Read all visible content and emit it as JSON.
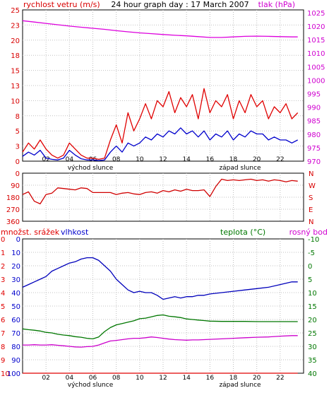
{
  "window": {
    "background": "#ffffff"
  },
  "chart_data": [
    {
      "type": "line",
      "title": "24 hour graph day : 17 March 2007",
      "left_axis_label": "rychlost vetru (m/s)",
      "right_axis_label": "tlak (hPa)",
      "left_ticks": [
        "0",
        "3",
        "5",
        "8",
        "10",
        "13",
        "15",
        "18",
        "20",
        "23",
        "25"
      ],
      "right_ticks": [
        "970",
        "975",
        "980",
        "985",
        "990",
        "995",
        "1000",
        "1005",
        "1010",
        "1015",
        "1020",
        "1025"
      ],
      "x_ticks": [
        "02",
        "04",
        "06",
        "08",
        "10",
        "12",
        "14",
        "16",
        "18",
        "20",
        "22"
      ],
      "x_notes": [
        "východ slunce",
        "západ slunce"
      ],
      "ylim_left": [
        0,
        25
      ],
      "ylim_right": [
        970,
        1026
      ],
      "xlim_hours": [
        0,
        24
      ],
      "grid": true,
      "colors": {
        "left_axis": "#d80000",
        "right_axis": "#d000d0"
      },
      "series": [
        {
          "name": "tlak (hPa)",
          "color": "#dd00dd",
          "axis": "right",
          "x": [
            0,
            1,
            2,
            3,
            4,
            5,
            6,
            7,
            8,
            9,
            10,
            11,
            12,
            13,
            14,
            15,
            16,
            17,
            18,
            19,
            20,
            21,
            22,
            23,
            23.5
          ],
          "y": [
            1022,
            1021.5,
            1021,
            1020.5,
            1020,
            1019.6,
            1019.2,
            1018.8,
            1018.3,
            1017.9,
            1017.5,
            1017.2,
            1016.9,
            1016.6,
            1016.4,
            1016.1,
            1015.8,
            1015.8,
            1016,
            1016.2,
            1016.3,
            1016.2,
            1016.1,
            1016,
            1016
          ]
        },
        {
          "name": "gust",
          "color": "#e00000",
          "axis": "left",
          "x": [
            0,
            0.5,
            1,
            1.5,
            2,
            2.5,
            3,
            3.5,
            4,
            4.5,
            5,
            5.5,
            6,
            6.5,
            7,
            7.5,
            8,
            8.5,
            9,
            9.5,
            10,
            10.5,
            11,
            11.5,
            12,
            12.5,
            13,
            13.5,
            14,
            14.5,
            15,
            15.5,
            16,
            16.5,
            17,
            17.5,
            18,
            18.5,
            19,
            19.5,
            20,
            20.5,
            21,
            21.5,
            22,
            22.5,
            23,
            23.5
          ],
          "y": [
            1.5,
            3,
            2,
            3.5,
            2,
            1,
            0.5,
            1,
            3,
            2,
            1,
            0.5,
            0.5,
            0.3,
            0.5,
            3.5,
            6,
            3,
            8,
            5,
            7,
            9.5,
            7,
            10,
            9,
            11.5,
            8,
            10.5,
            9,
            11,
            7,
            12,
            8,
            10,
            9,
            11,
            7,
            10,
            8,
            11,
            9,
            10,
            7,
            9,
            8,
            9.5,
            7,
            8
          ]
        },
        {
          "name": "rychlost vetru (m/s)",
          "color": "#0000cc",
          "axis": "left",
          "x": [
            0,
            0.5,
            1,
            1.5,
            2,
            2.5,
            3,
            3.5,
            4,
            4.5,
            5,
            5.5,
            6,
            6.5,
            7,
            7.5,
            8,
            8.5,
            9,
            9.5,
            10,
            10.5,
            11,
            11.5,
            12,
            12.5,
            13,
            13.5,
            14,
            14.5,
            15,
            15.5,
            16,
            16.5,
            17,
            17.5,
            18,
            18.5,
            19,
            19.5,
            20,
            20.5,
            21,
            21.5,
            22,
            22.5,
            23,
            23.5
          ],
          "y": [
            0.8,
            1.5,
            1,
            1.8,
            0.5,
            0.3,
            0.2,
            0.5,
            1.8,
            1,
            0.4,
            0.2,
            0.2,
            0.1,
            0.2,
            1.5,
            2.5,
            1.5,
            3,
            2.5,
            3,
            4,
            3.5,
            4.5,
            4,
            5,
            4.5,
            5.5,
            4.5,
            5,
            4,
            5,
            3.5,
            4.5,
            4,
            5,
            3.5,
            4.5,
            4,
            5,
            4.5,
            4.5,
            3.5,
            4,
            3.5,
            3.5,
            3,
            3.5
          ]
        }
      ]
    },
    {
      "type": "line",
      "left_ticks": [
        "0",
        "90",
        "180",
        "270",
        "360"
      ],
      "right_labels": [
        "N",
        "W",
        "S",
        "E",
        "N"
      ],
      "ylim": [
        0,
        360
      ],
      "xlim_hours": [
        0,
        24
      ],
      "grid": true,
      "colors": {
        "axis": "#d80000"
      },
      "series": [
        {
          "name": "wind direction",
          "color": "#d00000",
          "x": [
            0,
            0.5,
            1,
            1.5,
            2,
            2.5,
            3,
            3.5,
            4,
            4.5,
            5,
            5.5,
            6,
            6.5,
            7,
            7.5,
            8,
            8.5,
            9,
            9.5,
            10,
            10.5,
            11,
            11.5,
            12,
            12.5,
            13,
            13.5,
            14,
            14.5,
            15,
            15.5,
            16,
            16.5,
            17,
            17.5,
            18,
            18.5,
            19,
            19.5,
            20,
            20.5,
            21,
            21.5,
            22,
            22.5,
            23,
            23.5
          ],
          "y": [
            200,
            220,
            150,
            130,
            200,
            210,
            250,
            245,
            240,
            235,
            250,
            245,
            215,
            215,
            215,
            215,
            200,
            210,
            215,
            205,
            200,
            215,
            220,
            210,
            230,
            220,
            235,
            225,
            240,
            230,
            230,
            235,
            185,
            260,
            315,
            305,
            310,
            305,
            310,
            315,
            305,
            310,
            300,
            310,
            305,
            295,
            305,
            300
          ]
        }
      ]
    },
    {
      "type": "line",
      "left_axis_label": "množst. srážek",
      "left_axis_label_2": "vlhkost",
      "right_axis_label": "teplota (°C)",
      "right_axis_label_2": "rosný bod",
      "rain_ticks": [
        "0",
        "1",
        "2",
        "3",
        "4",
        "5",
        "6",
        "7",
        "8",
        "9",
        "10"
      ],
      "humidity_ticks": [
        "0",
        "10",
        "20",
        "30",
        "40",
        "50",
        "60",
        "70",
        "80",
        "90",
        "100"
      ],
      "temp_ticks": [
        "-10",
        "-5",
        "0",
        "5",
        "10",
        "15",
        "20",
        "25",
        "30",
        "35",
        "40"
      ],
      "x_ticks": [
        "02",
        "04",
        "06",
        "08",
        "10",
        "12",
        "14",
        "16",
        "18",
        "20",
        "22"
      ],
      "x_notes": [
        "východ slunce",
        "západ slunce"
      ],
      "ylim_humidity": [
        0,
        100
      ],
      "ylim_temp": [
        -10,
        40
      ],
      "xlim_hours": [
        0,
        24
      ],
      "grid": true,
      "colors": {
        "rain_axis": "#e00000",
        "humidity_axis": "#0000cc",
        "temp_axis": "#007700",
        "dew_axis": "#d000d0"
      },
      "series": [
        {
          "name": "vlhkost",
          "color": "#0000bb",
          "axis": "humidity",
          "x": [
            0,
            0.5,
            1,
            1.5,
            2,
            2.5,
            3,
            3.5,
            4,
            4.5,
            5,
            5.5,
            6,
            6.5,
            7,
            7.5,
            8,
            8.5,
            9,
            9.5,
            10,
            10.5,
            11,
            11.5,
            12,
            12.5,
            13,
            13.5,
            14,
            14.5,
            15,
            15.5,
            16,
            17,
            18,
            19,
            20,
            21,
            22,
            23,
            23.5
          ],
          "y": [
            64,
            66,
            68,
            70,
            72,
            76,
            78,
            80,
            82,
            83,
            85,
            86,
            86,
            84,
            80,
            76,
            70,
            66,
            62,
            60,
            61,
            60,
            60,
            58,
            55,
            56,
            57,
            56,
            57,
            57,
            58,
            58,
            59,
            60,
            61,
            62,
            63,
            64,
            66,
            68,
            68
          ]
        },
        {
          "name": "teplota (°C)",
          "color": "#007700",
          "axis": "temp",
          "x": [
            0,
            0.5,
            1,
            1.5,
            2,
            2.5,
            3,
            3.5,
            4,
            4.5,
            5,
            5.5,
            6,
            6.5,
            7,
            7.5,
            8,
            8.5,
            9,
            9.5,
            10,
            10.5,
            11,
            11.5,
            12,
            12.5,
            13,
            13.5,
            14,
            14.5,
            15,
            15.5,
            16,
            17,
            18,
            19,
            20,
            21,
            22,
            23,
            23.5
          ],
          "y": [
            6.5,
            6.2,
            6,
            5.7,
            5.2,
            5,
            4.5,
            4.2,
            4,
            3.6,
            3.4,
            3,
            2.8,
            3.5,
            5.5,
            7,
            8,
            8.5,
            9,
            9.5,
            10.3,
            10.5,
            11,
            11.5,
            11.7,
            11.2,
            11,
            10.7,
            10.2,
            10,
            9.8,
            9.6,
            9.4,
            9.3,
            9.3,
            9.3,
            9.2,
            9.2,
            9.2,
            9.2,
            9.2
          ]
        },
        {
          "name": "rosný bod",
          "color": "#cc00cc",
          "axis": "temp",
          "x": [
            0,
            0.5,
            1,
            1.5,
            2,
            2.5,
            3,
            3.5,
            4,
            4.5,
            5,
            5.5,
            6,
            6.5,
            7,
            7.5,
            8,
            8.5,
            9,
            9.5,
            10,
            10.5,
            11,
            11.5,
            12,
            12.5,
            13,
            13.5,
            14,
            14.5,
            15,
            15.5,
            16,
            17,
            18,
            19,
            20,
            21,
            22,
            23,
            23.5
          ],
          "y": [
            0.5,
            0.5,
            0.6,
            0.5,
            0.5,
            0.6,
            0.4,
            0.2,
            0,
            -0.2,
            -0.3,
            -0.1,
            0,
            0.5,
            1.3,
            2,
            2.2,
            2.5,
            2.8,
            3,
            3,
            3.2,
            3.5,
            3.3,
            3,
            2.7,
            2.5,
            2.4,
            2.3,
            2.4,
            2.4,
            2.5,
            2.6,
            2.8,
            3,
            3.2,
            3.4,
            3.5,
            3.8,
            4,
            4
          ]
        },
        {
          "name": "množst. srážek",
          "color": "#e00000",
          "axis": "rain",
          "x": [
            0,
            23.5
          ],
          "y": [
            0,
            0
          ]
        }
      ]
    }
  ]
}
